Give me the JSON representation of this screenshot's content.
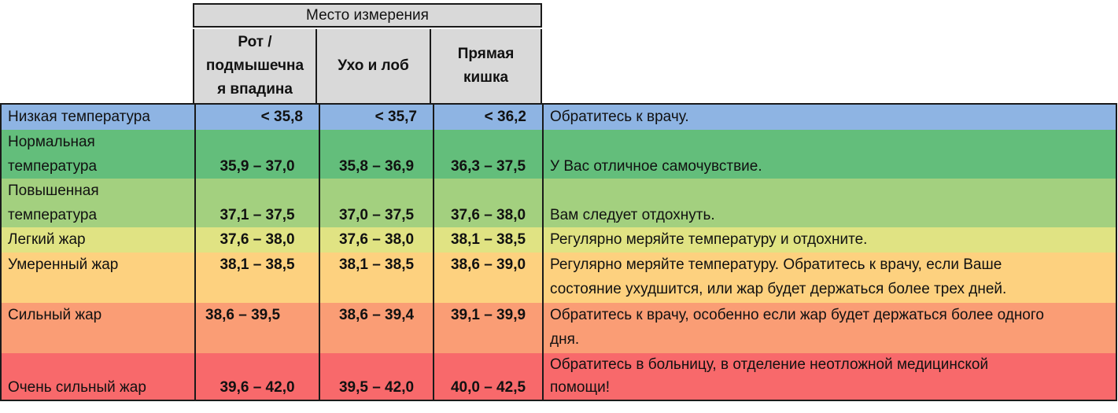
{
  "header": {
    "group_title": "Место измерения",
    "columns": [
      "Рот /\nподмышечна\nя впадина",
      "Ухо и лоб",
      "Прямая\nкишка"
    ]
  },
  "rows": [
    {
      "name": "Низкая температура",
      "oral": "< 35,8",
      "ear": "< 35,7",
      "rectal": "< 36,2",
      "note": "Обратитесь к врачу.",
      "color": "#8eb4e3"
    },
    {
      "name": "Нормальная\nтемпература",
      "oral": "35,9 – 37,0",
      "ear": "35,8 – 36,9",
      "rectal": "36,3 – 37,5",
      "note": "У Вас отличное самочувствие.",
      "color": "#63be7b"
    },
    {
      "name": "Повышенная\nтемпература",
      "oral": "37,1 – 37,5",
      "ear": "37,0 – 37,5",
      "rectal": "37,6 – 38,0",
      "note": "Вам следует отдохнуть.",
      "color": "#a3d07f"
    },
    {
      "name": "Легкий жар",
      "oral": "37,6 – 38,0",
      "ear": "37,6 – 38,0",
      "rectal": "38,1 – 38,5",
      "note": "Регулярно меряйте температуру и отдохните.",
      "color": "#e0e383"
    },
    {
      "name": "Умеренный жар",
      "oral": "38,1 – 38,5",
      "ear": "38,1 – 38,5",
      "rectal": "38,6 – 39,0",
      "note": "Регулярно меряйте температуру. Обратитесь к врачу, если Ваше\nсостояние ухудшится, или жар будет держаться более трех дней.",
      "color": "#fdd17f"
    },
    {
      "name": "Сильный жар",
      "oral": "38,6 – 39,5",
      "ear": "38,6 – 39,4",
      "rectal": "39,1 – 39,9",
      "note": "Обратитесь к врачу, особенно если жар будет держаться более одного\nдня.",
      "color": "#fa9d75"
    },
    {
      "name": "Очень сильный жар",
      "oral": "39,6 – 42,0",
      "ear": "39,5 – 42,0",
      "rectal": "40,0 – 42,5",
      "note": "Обратитесь в больницу, в отделение неотложной медицинской\nпомощи!",
      "color": "#f8696b"
    }
  ]
}
